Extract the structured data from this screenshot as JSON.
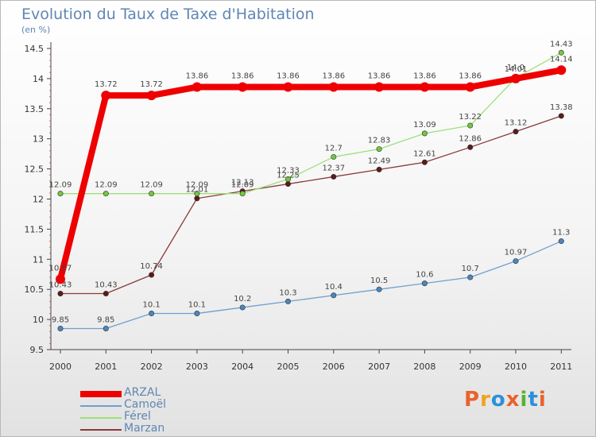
{
  "header": {
    "title": "Evolution du Taux de Taxe d'Habitation",
    "unit": "(en %)"
  },
  "logo": {
    "text": "Proxiti",
    "colors": [
      "#e8632b",
      "#f0a31c",
      "#2f8fd8",
      "#e8632b",
      "#58b331",
      "#2f8fd8",
      "#e8632b"
    ]
  },
  "chart_data": {
    "type": "line",
    "title": "Evolution du Taux de Taxe d'Habitation",
    "ylabel": "(en %)",
    "xlabel": "",
    "ylim": [
      9.5,
      14.5
    ],
    "yticks": [
      9.5,
      10,
      10.5,
      11,
      11.5,
      12,
      12.5,
      13,
      13.5,
      14,
      14.5
    ],
    "categories": [
      "2000",
      "2001",
      "2002",
      "2003",
      "2004",
      "2005",
      "2006",
      "2007",
      "2008",
      "2009",
      "2010",
      "2011"
    ],
    "grid": false,
    "legend_position": "bottom-left",
    "series": [
      {
        "name": "Camoël",
        "color": "#6f9fcf",
        "marker": "#4a86c0",
        "values": [
          9.85,
          9.85,
          10.1,
          10.1,
          10.2,
          10.3,
          10.4,
          10.5,
          10.6,
          10.7,
          10.97,
          11.3
        ],
        "labels": [
          "9.85",
          "9.85",
          "10.1",
          "10.1",
          "10.2",
          "10.3",
          "10.4",
          "10.5",
          "10.6",
          "10.7",
          "10.97",
          "11.3"
        ]
      },
      {
        "name": "Marzan",
        "color": "#8a3a3a",
        "marker": "#5e1a1a",
        "values": [
          10.43,
          10.43,
          10.74,
          12.01,
          12.13,
          12.25,
          12.37,
          12.49,
          12.61,
          12.86,
          13.12,
          13.38
        ],
        "labels": [
          "10.43",
          "10.43",
          "10.74",
          "12.01",
          "12.13",
          "12.25",
          "12.37",
          "12.49",
          "12.61",
          "12.86",
          "13.12",
          "13.38"
        ]
      },
      {
        "name": "Férel",
        "color": "#9ee07a",
        "marker": "#72c83e",
        "values": [
          12.09,
          12.09,
          12.09,
          12.09,
          12.09,
          12.33,
          12.7,
          12.83,
          13.09,
          13.22,
          14.01,
          14.43
        ],
        "labels": [
          "12.09",
          "12.09",
          "12.09",
          "12.09",
          "12.09",
          "12.33",
          "12.7",
          "12.83",
          "13.09",
          "13.22",
          "14.01",
          "14.43"
        ]
      },
      {
        "name": "ARZAL",
        "color": "#ee0000",
        "marker": "#ee0000",
        "values": [
          10.67,
          13.72,
          13.72,
          13.86,
          13.86,
          13.86,
          13.86,
          13.86,
          13.86,
          13.86,
          14.0,
          14.14
        ],
        "labels": [
          "10.67",
          "13.72",
          "13.72",
          "13.86",
          "13.86",
          "13.86",
          "13.86",
          "13.86",
          "13.86",
          "13.86",
          "14.0",
          "14.14"
        ]
      }
    ],
    "legend": [
      "ARZAL",
      "Camoël",
      "Férel",
      "Marzan"
    ]
  }
}
